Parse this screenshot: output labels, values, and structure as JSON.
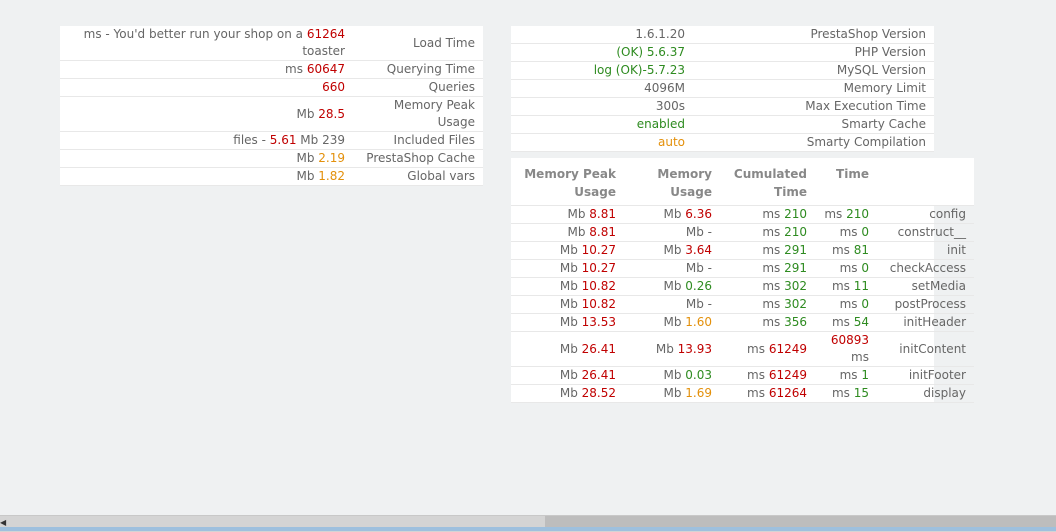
{
  "perf": [
    {
      "label": "Load Time",
      "parts": [
        {
          "t": "ms - You'd better run your shop on a ",
          "c": "unit"
        },
        {
          "t": "61264",
          "c": "red"
        },
        {
          "t": " toaster",
          "c": "unit"
        }
      ]
    },
    {
      "label": "Querying Time",
      "parts": [
        {
          "t": "ms ",
          "c": "unit"
        },
        {
          "t": "60647",
          "c": "red"
        }
      ]
    },
    {
      "label": "Queries",
      "parts": [
        {
          "t": "660",
          "c": "red"
        }
      ]
    },
    {
      "label": "Memory Peak Usage",
      "parts": [
        {
          "t": "Mb ",
          "c": "unit"
        },
        {
          "t": "28.5",
          "c": "red"
        }
      ]
    },
    {
      "label": "Included Files",
      "parts": [
        {
          "t": "files - ",
          "c": "unit"
        },
        {
          "t": "5.61",
          "c": "red"
        },
        {
          "t": " Mb 239",
          "c": "unit"
        }
      ]
    },
    {
      "label": "PrestaShop Cache",
      "parts": [
        {
          "t": "Mb ",
          "c": "unit"
        },
        {
          "t": "2.19",
          "c": "orange"
        }
      ]
    },
    {
      "label": "Global vars",
      "parts": [
        {
          "t": "Mb ",
          "c": "unit"
        },
        {
          "t": "1.82",
          "c": "orange"
        }
      ]
    }
  ],
  "info": [
    {
      "label": "PrestaShop Version",
      "parts": [
        {
          "t": "1.6.1.20",
          "c": "unit"
        }
      ]
    },
    {
      "label": "PHP Version",
      "parts": [
        {
          "t": "(OK) 5.6.37",
          "c": "green"
        }
      ]
    },
    {
      "label": "MySQL Version",
      "parts": [
        {
          "t": "log (OK)-5.7.23",
          "c": "green"
        }
      ]
    },
    {
      "label": "Memory Limit",
      "parts": [
        {
          "t": "4096M",
          "c": "unit"
        }
      ]
    },
    {
      "label": "Max Execution Time",
      "parts": [
        {
          "t": "300s",
          "c": "unit"
        }
      ]
    },
    {
      "label": "Smarty Cache",
      "parts": [
        {
          "t": "enabled",
          "c": "green"
        }
      ]
    },
    {
      "label": "Smarty Compilation",
      "parts": [
        {
          "t": "auto",
          "c": "orange"
        }
      ]
    }
  ],
  "controller_headers": [
    "Memory Peak Usage",
    "Memory Usage",
    "Cumulated Time",
    "Time",
    ""
  ],
  "controller_rows": [
    {
      "peak": {
        "u": "Mb ",
        "v": "8.81",
        "c": "red"
      },
      "mem": {
        "u": "Mb ",
        "v": "6.36",
        "c": "red"
      },
      "cum": {
        "u": "ms ",
        "v": "210",
        "c": "green"
      },
      "time": {
        "u": "ms ",
        "v": "210",
        "c": "green"
      },
      "name": "config"
    },
    {
      "peak": {
        "u": "Mb ",
        "v": "8.81",
        "c": "red"
      },
      "mem": {
        "u": "Mb ",
        "v": "-",
        "c": "unit"
      },
      "cum": {
        "u": "ms ",
        "v": "210",
        "c": "green"
      },
      "time": {
        "u": "ms ",
        "v": "0",
        "c": "green"
      },
      "name": "construct__"
    },
    {
      "peak": {
        "u": "Mb ",
        "v": "10.27",
        "c": "red"
      },
      "mem": {
        "u": "Mb ",
        "v": "3.64",
        "c": "red"
      },
      "cum": {
        "u": "ms ",
        "v": "291",
        "c": "green"
      },
      "time": {
        "u": "ms ",
        "v": "81",
        "c": "green"
      },
      "name": "init"
    },
    {
      "peak": {
        "u": "Mb ",
        "v": "10.27",
        "c": "red"
      },
      "mem": {
        "u": "Mb ",
        "v": "-",
        "c": "unit"
      },
      "cum": {
        "u": "ms ",
        "v": "291",
        "c": "green"
      },
      "time": {
        "u": "ms ",
        "v": "0",
        "c": "green"
      },
      "name": "checkAccess"
    },
    {
      "peak": {
        "u": "Mb ",
        "v": "10.82",
        "c": "red"
      },
      "mem": {
        "u": "Mb ",
        "v": "0.26",
        "c": "green"
      },
      "cum": {
        "u": "ms ",
        "v": "302",
        "c": "green"
      },
      "time": {
        "u": "ms ",
        "v": "11",
        "c": "green"
      },
      "name": "setMedia"
    },
    {
      "peak": {
        "u": "Mb ",
        "v": "10.82",
        "c": "red"
      },
      "mem": {
        "u": "Mb ",
        "v": "-",
        "c": "unit"
      },
      "cum": {
        "u": "ms ",
        "v": "302",
        "c": "green"
      },
      "time": {
        "u": "ms ",
        "v": "0",
        "c": "green"
      },
      "name": "postProcess"
    },
    {
      "peak": {
        "u": "Mb ",
        "v": "13.53",
        "c": "red"
      },
      "mem": {
        "u": "Mb ",
        "v": "1.60",
        "c": "orange"
      },
      "cum": {
        "u": "ms ",
        "v": "356",
        "c": "green"
      },
      "time": {
        "u": "ms ",
        "v": "54",
        "c": "green"
      },
      "name": "initHeader"
    },
    {
      "peak": {
        "u": "Mb ",
        "v": "26.41",
        "c": "red"
      },
      "mem": {
        "u": "Mb ",
        "v": "13.93",
        "c": "red"
      },
      "cum": {
        "u": "ms ",
        "v": "61249",
        "c": "red"
      },
      "time": {
        "u": "",
        "v": "60893",
        "c": "red",
        "after": " ms"
      },
      "name": "initContent"
    },
    {
      "peak": {
        "u": "Mb ",
        "v": "26.41",
        "c": "red"
      },
      "mem": {
        "u": "Mb ",
        "v": "0.03",
        "c": "green"
      },
      "cum": {
        "u": "ms ",
        "v": "61249",
        "c": "red"
      },
      "time": {
        "u": "ms ",
        "v": "1",
        "c": "green"
      },
      "name": "initFooter"
    },
    {
      "peak": {
        "u": "Mb ",
        "v": "28.52",
        "c": "red"
      },
      "mem": {
        "u": "Mb ",
        "v": "1.69",
        "c": "orange"
      },
      "cum": {
        "u": "ms ",
        "v": "61264",
        "c": "red"
      },
      "time": {
        "u": "ms ",
        "v": "15",
        "c": "green"
      },
      "name": "display"
    }
  ],
  "colors": {
    "red": "#c00000",
    "green": "#2e8b20",
    "orange": "#e3900b",
    "text": "#666666",
    "background": "#eff1f2"
  }
}
